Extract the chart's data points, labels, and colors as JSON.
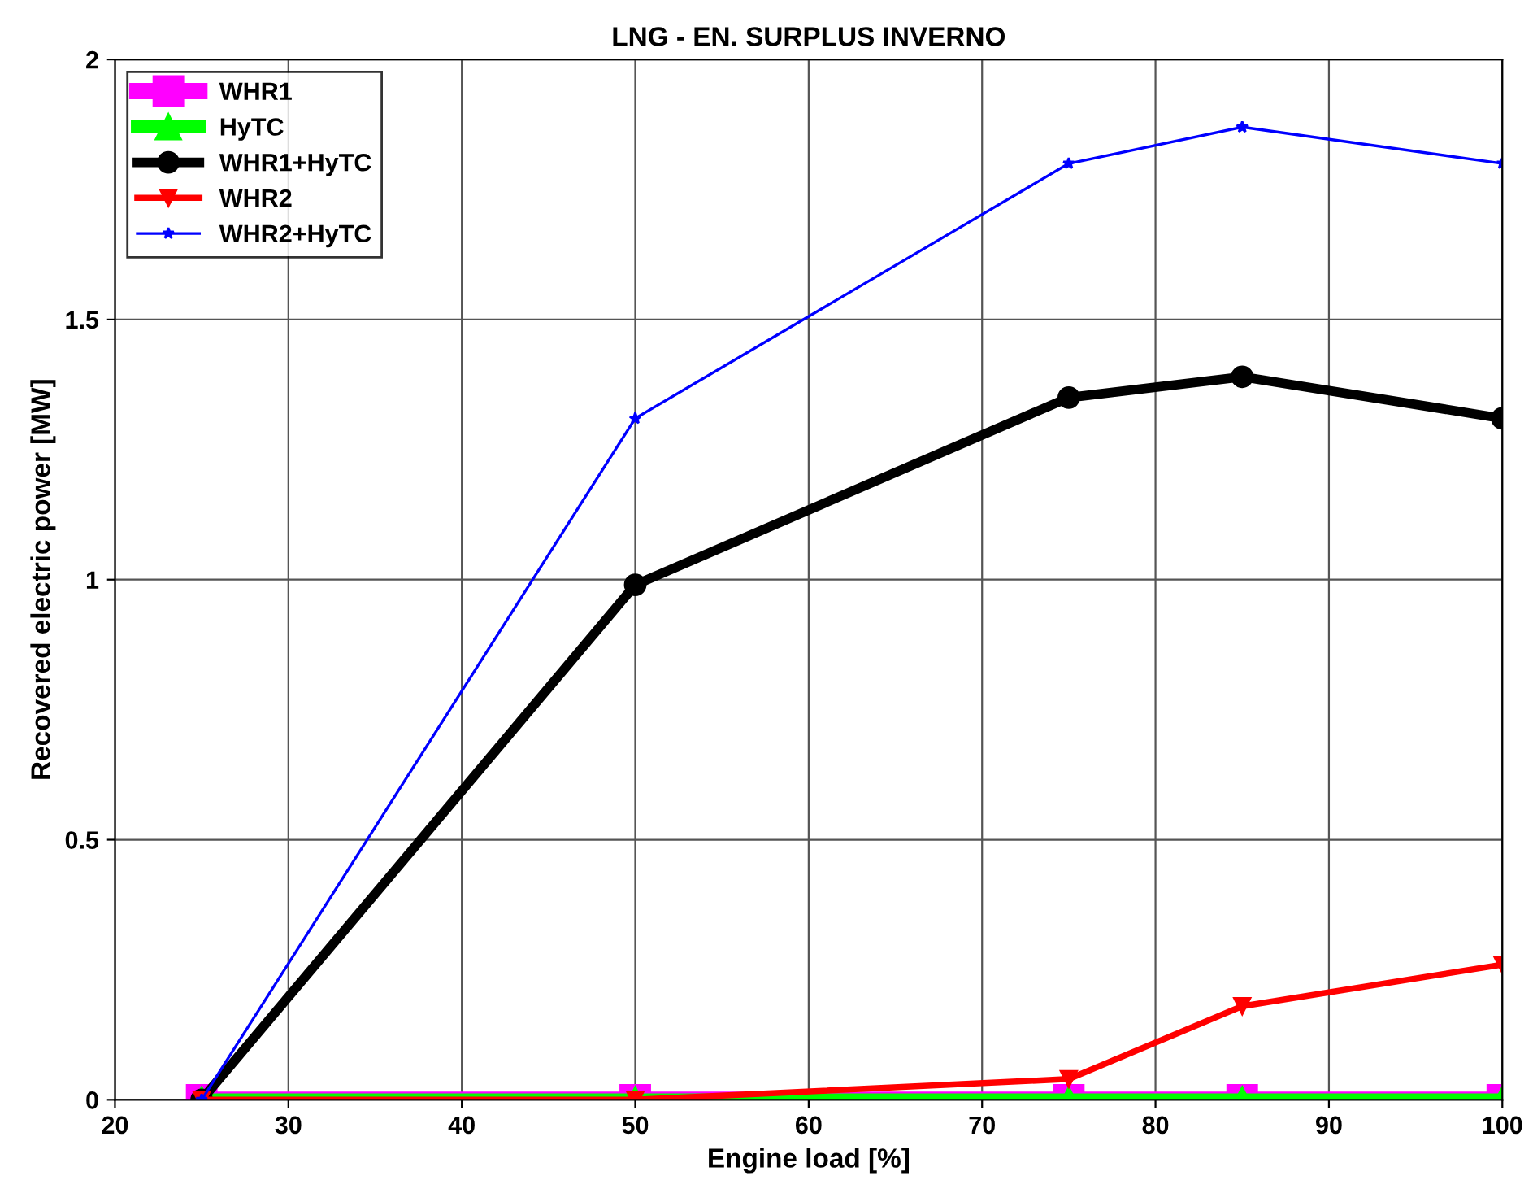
{
  "chart_data": {
    "type": "line",
    "title": "LNG - EN. SURPLUS INVERNO",
    "xlabel": "Engine load [%]",
    "ylabel": "Recovered electric power [MW]",
    "x": [
      25,
      50,
      75,
      85,
      100
    ],
    "series": [
      {
        "name": "WHR1",
        "color": "#ff00ff",
        "marker": "square",
        "values": [
          0,
          0,
          0,
          0,
          0
        ]
      },
      {
        "name": "HyTC",
        "color": "#00ff00",
        "marker": "triangle",
        "values": [
          0,
          0,
          0,
          0,
          0
        ]
      },
      {
        "name": "WHR1+HyTC",
        "color": "#000000",
        "marker": "circle",
        "values": [
          0,
          0.99,
          1.35,
          1.39,
          1.31
        ]
      },
      {
        "name": "WHR2",
        "color": "#ff0000",
        "marker": "triangle_down",
        "values": [
          0,
          0,
          0.04,
          0.18,
          0.26
        ]
      },
      {
        "name": "WHR2+HyTC",
        "color": "#0000ff",
        "marker": "star",
        "values": [
          0,
          1.31,
          1.8,
          1.87,
          1.8
        ]
      }
    ],
    "xlim": [
      20,
      100
    ],
    "xticks": [
      20,
      30,
      40,
      50,
      60,
      70,
      80,
      90,
      100
    ],
    "ylim": [
      0,
      2
    ],
    "yticks": [
      0,
      0.5,
      1,
      1.5,
      2
    ],
    "grid": true,
    "legend": "top left"
  }
}
